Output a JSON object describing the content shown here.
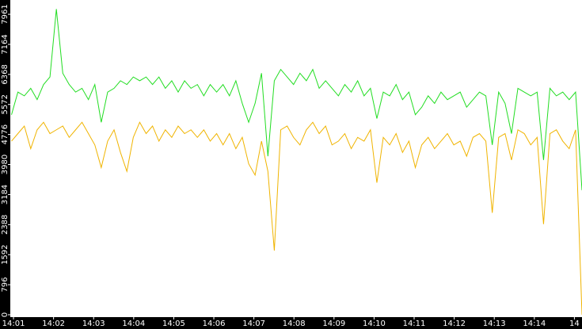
{
  "chart_data": {
    "type": "line",
    "x": [
      0.95,
      1.11,
      1.27,
      1.43,
      1.59,
      1.75,
      1.91,
      2.07,
      2.23,
      2.39,
      2.55,
      2.71,
      2.87,
      3.03,
      3.19,
      3.35,
      3.51,
      3.67,
      3.83,
      3.99,
      4.15,
      4.31,
      4.47,
      4.63,
      4.79,
      4.95,
      5.11,
      5.27,
      5.43,
      5.59,
      5.75,
      5.91,
      6.07,
      6.23,
      6.39,
      6.55,
      6.71,
      6.87,
      7.03,
      7.19,
      7.35,
      7.51,
      7.67,
      7.83,
      7.99,
      8.15,
      8.31,
      8.47,
      8.63,
      8.79,
      8.95,
      9.11,
      9.27,
      9.43,
      9.59,
      9.75,
      9.91,
      10.07,
      10.23,
      10.39,
      10.55,
      10.71,
      10.87,
      11.03,
      11.19,
      11.35,
      11.51,
      11.67,
      11.83,
      11.99,
      12.15,
      12.31,
      12.47,
      12.63,
      12.79,
      12.95,
      13.11,
      13.27,
      13.43,
      13.59,
      13.75,
      13.91,
      14.07,
      14.23,
      14.39,
      14.55,
      14.71,
      14.87,
      15.03,
      15.19
    ],
    "series": [
      {
        "color": "#22dd22",
        "values": [
          5300,
          5900,
          5800,
          6000,
          5700,
          6100,
          6300,
          8100,
          6400,
          6100,
          5900,
          6000,
          5700,
          6100,
          5100,
          5900,
          6000,
          6200,
          6100,
          6300,
          6200,
          6300,
          6100,
          6300,
          6000,
          6200,
          5900,
          6200,
          6000,
          6100,
          5800,
          6100,
          5900,
          6100,
          5800,
          6200,
          5600,
          5100,
          5600,
          6400,
          4200,
          6200,
          6500,
          6300,
          6100,
          6400,
          6200,
          6500,
          6000,
          6200,
          6000,
          5800,
          6100,
          5900,
          6200,
          5800,
          6000,
          5200,
          5900,
          5800,
          6100,
          5700,
          5900,
          5300,
          5500,
          5800,
          5600,
          5900,
          5700,
          5800,
          5900,
          5500,
          5700,
          5900,
          5800,
          4500,
          5900,
          5600,
          4800,
          6000,
          5900,
          5800,
          5900,
          4100,
          6000,
          5800,
          5900,
          5700,
          5900,
          3300
        ]
      },
      {
        "color": "#f0b400",
        "values": [
          4600,
          4800,
          5000,
          4400,
          4900,
          5100,
          4800,
          4900,
          5000,
          4700,
          4900,
          5100,
          4800,
          4500,
          3900,
          4600,
          4900,
          4300,
          3800,
          4700,
          5100,
          4800,
          5000,
          4600,
          4900,
          4700,
          5000,
          4800,
          4900,
          4700,
          4900,
          4600,
          4800,
          4500,
          4800,
          4400,
          4700,
          4000,
          3700,
          4600,
          3800,
          1700,
          4900,
          5000,
          4700,
          4500,
          4900,
          5100,
          4800,
          5000,
          4500,
          4600,
          4800,
          4400,
          4700,
          4600,
          4900,
          3500,
          4700,
          4500,
          4800,
          4300,
          4600,
          3900,
          4500,
          4700,
          4400,
          4600,
          4800,
          4500,
          4600,
          4200,
          4700,
          4800,
          4600,
          2700,
          4700,
          4800,
          4100,
          4900,
          4800,
          4500,
          4700,
          2400,
          4800,
          4900,
          4600,
          4400,
          4900,
          0
        ]
      }
    ],
    "xlim": [
      0.92,
      15.19
    ],
    "xticks": [
      {
        "value": 1,
        "label": "14:01"
      },
      {
        "value": 2,
        "label": "14:02"
      },
      {
        "value": 3,
        "label": "14:03"
      },
      {
        "value": 4,
        "label": "14:04"
      },
      {
        "value": 5,
        "label": "14:05"
      },
      {
        "value": 6,
        "label": "14:06"
      },
      {
        "value": 7,
        "label": "14:07"
      },
      {
        "value": 8,
        "label": "14:08"
      },
      {
        "value": 9,
        "label": "14:09"
      },
      {
        "value": 10,
        "label": "14:10"
      },
      {
        "value": 11,
        "label": "14:11"
      },
      {
        "value": 12,
        "label": "14:12"
      },
      {
        "value": 13,
        "label": "14:13"
      },
      {
        "value": 14,
        "label": "14:14"
      },
      {
        "value": 15,
        "label": "14"
      }
    ],
    "ylim": [
      0,
      8340
    ],
    "yticks": [
      0,
      796,
      1592,
      2388,
      3184,
      3980,
      4776,
      5572,
      6368,
      7164,
      7961
    ]
  }
}
